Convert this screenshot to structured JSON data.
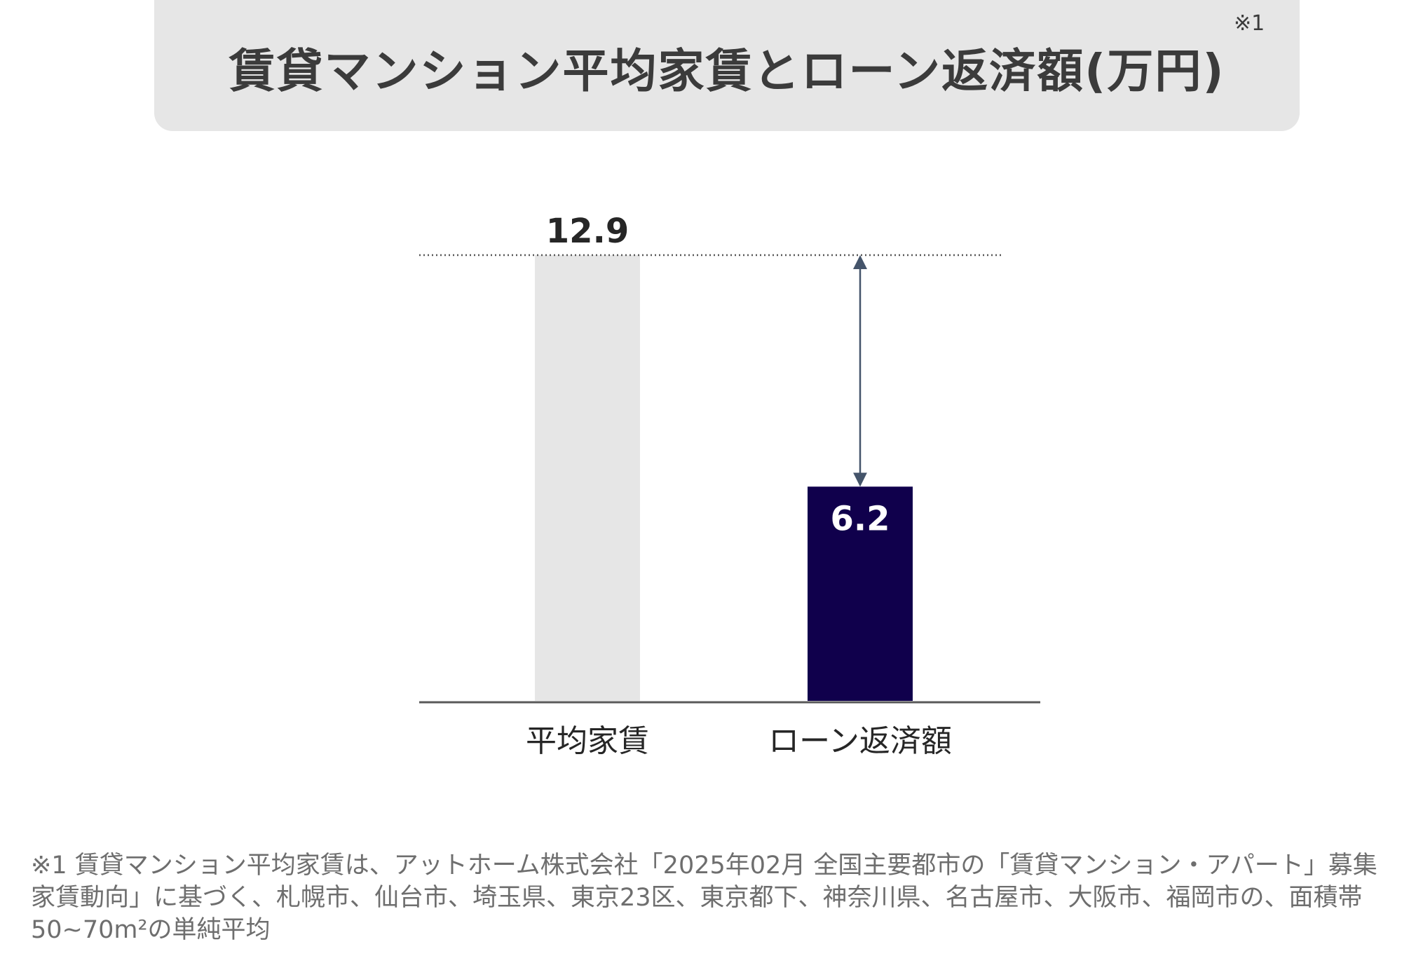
{
  "header": {
    "title": "賃貸マンション平均家賃とローン返済額(万円)",
    "note_mark": "※1"
  },
  "chart_data": {
    "type": "bar",
    "title": "賃貸マンション平均家賃とローン返済額(万円)",
    "categories": [
      "平均家賃",
      "ローン返済額"
    ],
    "values": [
      12.9,
      6.2
    ],
    "value_labels": [
      "12.9",
      "6.2"
    ],
    "colors": [
      "#e6e6e6",
      "#10004c"
    ],
    "ylim": [
      0,
      12.9
    ],
    "grid": false,
    "reference_line": {
      "value": 12.9,
      "style": "dotted"
    },
    "difference_arrow": {
      "from": 6.2,
      "to": 12.9,
      "category": "ローン返済額"
    },
    "xlabel": "",
    "ylabel": ""
  },
  "footnote": {
    "text": "※1 賃貸マンション平均家賃は、アットホーム株式会社「2025年02月 全国主要都市の「賃貸マンション・アパート」募集家賃動向」に基づく、札幌市、仙台市、埼玉県、東京23区、東京都下、神奈川県、名古屋市、大阪市、福岡市の、面積帯50~70m²の単純平均"
  }
}
